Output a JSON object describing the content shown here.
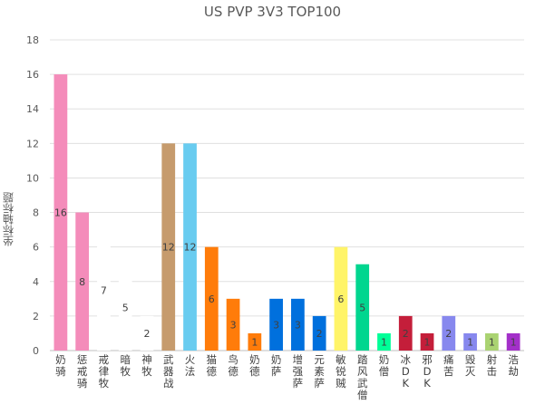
{
  "chart_data": {
    "type": "bar",
    "title": "US PVP 3V3 TOP100",
    "xlabel": "",
    "ylabel": "坐标轴标题",
    "ylim": [
      0,
      18
    ],
    "yticks": [
      0,
      2,
      4,
      6,
      8,
      10,
      12,
      14,
      16,
      18
    ],
    "grid": true,
    "legend": "none",
    "categories": [
      "奶骑",
      "惩戒骑",
      "戒律牧",
      "暗牧",
      "神牧",
      "武器战",
      "火法",
      "猫德",
      "鸟德",
      "奶德",
      "奶萨",
      "增强萨",
      "元素萨",
      "敏锐贼",
      "踏风武僧",
      "奶僧",
      "冰DK",
      "邪DK",
      "痛苦",
      "毁灭",
      "射击",
      "浩劫"
    ],
    "values": [
      16,
      8,
      7,
      5,
      2,
      12,
      12,
      6,
      3,
      1,
      3,
      3,
      2,
      6,
      5,
      1,
      2,
      1,
      2,
      1,
      1,
      1
    ],
    "colors": [
      "#f48cba",
      "#f48cba",
      "#ffffff",
      "#ffffff",
      "#ffffff",
      "#c69b6d",
      "#69ccf0",
      "#ff7c0a",
      "#ff7c0a",
      "#ff7c0a",
      "#0070dd",
      "#0070dd",
      "#0070dd",
      "#fff468",
      "#00d68f",
      "#00ff98",
      "#c41e3a",
      "#c41e3a",
      "#8788ee",
      "#8788ee",
      "#aad372",
      "#a330c9"
    ]
  }
}
